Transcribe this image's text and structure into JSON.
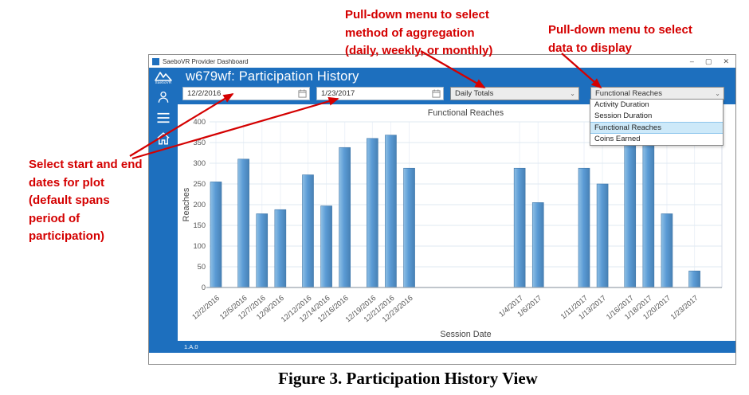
{
  "figure_caption": "Figure 3. Participation History View",
  "annotations": {
    "color": "#d40000",
    "dates_note": {
      "lines": [
        "Select start and end",
        "dates for plot",
        "(default spans",
        "period of",
        "participation)"
      ]
    },
    "aggregation_note": {
      "lines": [
        "Pull-down menu to  select",
        "method of aggregation",
        "(daily, weekly, or monthly)"
      ]
    },
    "data_note": {
      "lines": [
        "Pull-down menu to select",
        "data to display"
      ]
    }
  },
  "window": {
    "titlebar": {
      "title": "SaeboVR Provider Dashboard",
      "minimize": "–",
      "maximize": "▢",
      "close": "✕"
    },
    "sidebar": {
      "logo_text": "SaeboVR"
    },
    "header_title": "w679wf: Participation History",
    "toolbar": {
      "start_date": "12/2/2016",
      "end_date": "1/23/2017",
      "aggregation": "Daily Totals",
      "data_select": "Functional Reaches"
    },
    "data_dropdown": {
      "options": [
        "Activity Duration",
        "Session Duration",
        "Functional Reaches",
        "Coins Earned"
      ],
      "selected": "Functional Reaches"
    },
    "status_version": "1.A.0"
  },
  "chart_data": {
    "type": "bar",
    "title": "Functional Reaches",
    "xlabel": "Session Date",
    "ylabel": "Reaches",
    "ylim": [
      0,
      400
    ],
    "ytick_step": 50,
    "x_axis": "date",
    "grid": true,
    "legend": "none",
    "bar_color": "#5b9bd5",
    "categories": [
      "12/2/2016",
      "12/5/2016",
      "12/7/2016",
      "12/9/2016",
      "12/12/2016",
      "12/14/2016",
      "12/16/2016",
      "12/19/2016",
      "12/21/2016",
      "12/23/2016",
      "1/4/2017",
      "1/6/2017",
      "1/11/2017",
      "1/13/2017",
      "1/16/2017",
      "1/18/2017",
      "1/20/2017",
      "1/23/2017"
    ],
    "values": [
      255,
      310,
      178,
      188,
      272,
      197,
      338,
      360,
      368,
      288,
      288,
      205,
      288,
      250,
      395,
      395,
      178,
      40
    ]
  }
}
